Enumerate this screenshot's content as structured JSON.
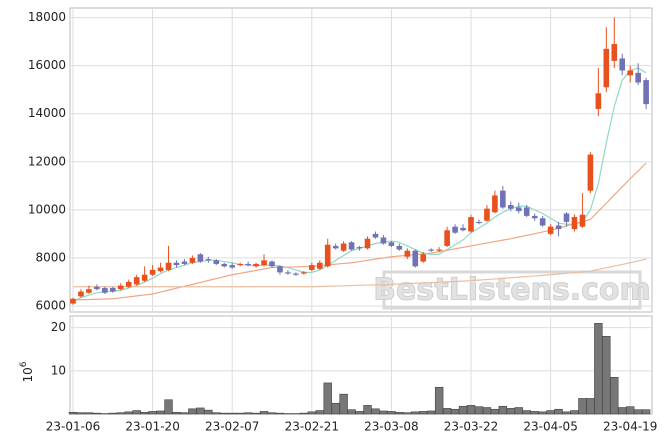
{
  "chart_data": [
    {
      "type": "candlestick",
      "x": [
        "23-01-06",
        "23-01-09",
        "23-01-10",
        "23-01-11",
        "23-01-12",
        "23-01-13",
        "23-01-16",
        "23-01-17",
        "23-01-18",
        "23-01-19",
        "23-01-20",
        "23-01-25",
        "23-01-26",
        "23-01-27",
        "23-01-30",
        "23-01-31",
        "23-02-01",
        "23-02-02",
        "23-02-03",
        "23-02-06",
        "23-02-07",
        "23-02-08",
        "23-02-09",
        "23-02-10",
        "23-02-13",
        "23-02-14",
        "23-02-15",
        "23-02-16",
        "23-02-17",
        "23-02-20",
        "23-02-21",
        "23-02-22",
        "23-02-23",
        "23-02-24",
        "23-02-27",
        "23-02-28",
        "23-03-02",
        "23-03-03",
        "23-03-06",
        "23-03-07",
        "23-03-08",
        "23-03-09",
        "23-03-10",
        "23-03-13",
        "23-03-14",
        "23-03-15",
        "23-03-16",
        "23-03-17",
        "23-03-20",
        "23-03-21",
        "23-03-22",
        "23-03-23",
        "23-03-24",
        "23-03-27",
        "23-03-28",
        "23-03-29",
        "23-03-30",
        "23-03-31",
        "23-04-03",
        "23-04-04",
        "23-04-05",
        "23-04-06",
        "23-04-07",
        "23-04-10",
        "23-04-11",
        "23-04-12",
        "23-04-13",
        "23-04-14",
        "23-04-17",
        "23-04-18",
        "23-04-19",
        "23-04-20",
        "23-04-21"
      ],
      "open": [
        6100,
        6400,
        6550,
        6800,
        6750,
        6750,
        6700,
        6800,
        6900,
        7050,
        7300,
        7450,
        7500,
        7800,
        7850,
        7800,
        8150,
        7950,
        7900,
        7750,
        7700,
        7700,
        7750,
        7650,
        7700,
        7850,
        7650,
        7400,
        7350,
        7350,
        7500,
        7550,
        7650,
        8500,
        8300,
        8650,
        8450,
        8400,
        9000,
        8850,
        8650,
        8500,
        8050,
        8300,
        7850,
        8350,
        8300,
        8500,
        9300,
        9250,
        9100,
        9500,
        9550,
        9900,
        10800,
        10200,
        10100,
        10100,
        9750,
        9650,
        9000,
        9350,
        9850,
        9200,
        9300,
        10800,
        14200,
        15100,
        16200,
        16300,
        15600,
        15700,
        15400
      ],
      "high": [
        6350,
        6700,
        6850,
        6900,
        6800,
        6800,
        6950,
        7100,
        7300,
        7650,
        7700,
        7800,
        8500,
        7900,
        7950,
        8100,
        8200,
        8050,
        7950,
        7800,
        7800,
        7800,
        7850,
        7800,
        8150,
        7900,
        7700,
        7500,
        7400,
        7450,
        7800,
        7900,
        8800,
        8600,
        8700,
        8700,
        8500,
        8900,
        9100,
        8950,
        8700,
        8600,
        8400,
        8350,
        8250,
        8400,
        8450,
        9300,
        9400,
        9400,
        9800,
        9600,
        10200,
        10800,
        11000,
        10350,
        10300,
        10200,
        9850,
        9750,
        9400,
        9500,
        9900,
        9800,
        10700,
        12400,
        15900,
        17600,
        18000,
        16500,
        16000,
        16100,
        15500
      ],
      "low": [
        6050,
        6350,
        6500,
        6650,
        6500,
        6550,
        6650,
        6750,
        6850,
        7000,
        7250,
        7400,
        7450,
        7600,
        7700,
        7750,
        7800,
        7800,
        7700,
        7600,
        7550,
        7650,
        7650,
        7600,
        7650,
        7600,
        7300,
        7300,
        7250,
        7300,
        7450,
        7500,
        7600,
        8350,
        8250,
        8300,
        8300,
        8350,
        8800,
        8550,
        8450,
        8300,
        7950,
        7600,
        7800,
        8250,
        8250,
        8450,
        9000,
        9100,
        9050,
        9400,
        9500,
        9850,
        10050,
        9950,
        9850,
        9700,
        9550,
        9300,
        8950,
        8900,
        9300,
        9100,
        9250,
        10700,
        13900,
        14900,
        15900,
        15600,
        15300,
        15200,
        14200
      ],
      "close": [
        6300,
        6600,
        6700,
        6700,
        6550,
        6600,
        6850,
        7000,
        7200,
        7300,
        7500,
        7600,
        7800,
        7700,
        7750,
        8000,
        7850,
        7900,
        7750,
        7650,
        7600,
        7750,
        7700,
        7750,
        7900,
        7650,
        7400,
        7350,
        7300,
        7400,
        7700,
        7800,
        8550,
        8400,
        8600,
        8350,
        8400,
        8800,
        8850,
        8600,
        8500,
        8350,
        8300,
        7650,
        8150,
        8300,
        8350,
        9150,
        9050,
        9150,
        9700,
        9450,
        10050,
        10600,
        10100,
        10050,
        9950,
        9750,
        9650,
        9350,
        9300,
        9200,
        9500,
        9700,
        9800,
        12300,
        14850,
        16700,
        16900,
        15800,
        15800,
        15300,
        14400
      ],
      "up_color": "#e8501e",
      "down_color": "#6f72b5",
      "lines": [
        {
          "color": "#8fd9c2",
          "values": [
            6200,
            6350,
            6450,
            6550,
            6600,
            6620,
            6650,
            6750,
            6850,
            7000,
            7150,
            7350,
            7500,
            7600,
            7700,
            7800,
            7850,
            7900,
            7900,
            7850,
            7800,
            7720,
            7700,
            7680,
            7700,
            7700,
            7660,
            7600,
            7500,
            7400,
            7400,
            7500,
            7700,
            7900,
            8100,
            8300,
            8400,
            8500,
            8600,
            8650,
            8700,
            8650,
            8500,
            8350,
            8200,
            8150,
            8150,
            8350,
            8550,
            8750,
            9050,
            9250,
            9450,
            9700,
            9900,
            10050,
            10150,
            10150,
            10000,
            9850,
            9650,
            9450,
            9400,
            9400,
            9500,
            10000,
            11100,
            12800,
            14300,
            15400,
            15800,
            15900,
            15700
          ]
        },
        {
          "color": "#f0a585",
          "values": [
            6250,
            6260,
            6270,
            6280,
            6290,
            6300,
            6340,
            6380,
            6420,
            6460,
            6500,
            6580,
            6660,
            6740,
            6820,
            6900,
            6980,
            7060,
            7140,
            7220,
            7300,
            7360,
            7420,
            7480,
            7540,
            7600,
            7610,
            7620,
            7630,
            7640,
            7650,
            7680,
            7710,
            7740,
            7770,
            7800,
            7850,
            7900,
            7950,
            8000,
            8050,
            8080,
            8110,
            8140,
            8170,
            8200,
            8260,
            8320,
            8380,
            8440,
            8500,
            8560,
            8620,
            8680,
            8740,
            8800,
            8870,
            8940,
            9010,
            9080,
            9150,
            9240,
            9330,
            9420,
            9510,
            9600,
            9940,
            10280,
            10620,
            10960,
            11300,
            11620,
            11950
          ]
        },
        {
          "color": "#e9bfa2",
          "values": [
            6800,
            6800,
            6800,
            6800,
            6800,
            6800,
            6800,
            6800,
            6800,
            6800,
            6800,
            6800,
            6800,
            6800,
            6800,
            6800,
            6800,
            6800,
            6800,
            6800,
            6800,
            6800,
            6800,
            6800,
            6800,
            6800,
            6800,
            6800,
            6800,
            6800,
            6800,
            6810,
            6820,
            6830,
            6840,
            6850,
            6860,
            6870,
            6880,
            6890,
            6900,
            6915,
            6930,
            6945,
            6960,
            6975,
            6990,
            7005,
            7020,
            7035,
            7050,
            7075,
            7100,
            7125,
            7150,
            7175,
            7200,
            7225,
            7250,
            7275,
            7300,
            7330,
            7360,
            7390,
            7420,
            7450,
            7520,
            7590,
            7660,
            7730,
            7800,
            7875,
            7950
          ]
        }
      ],
      "ylim": [
        5750,
        18400
      ],
      "yticks": [
        6000,
        8000,
        10000,
        12000,
        14000,
        16000,
        18000
      ],
      "xticks": [
        "23-01-06",
        "23-01-20",
        "23-02-07",
        "23-02-21",
        "23-03-08",
        "23-03-22",
        "23-04-05",
        "23-04-19"
      ],
      "grid": true,
      "watermark": "BestListens.com"
    },
    {
      "type": "bar",
      "values": [
        0.4,
        0.3,
        0.3,
        0.2,
        0.1,
        0.2,
        0.3,
        0.5,
        0.8,
        0.4,
        0.6,
        0.7,
        3.3,
        0.4,
        0.3,
        1.2,
        1.4,
        0.9,
        0.3,
        0.2,
        0.2,
        0.2,
        0.3,
        0.2,
        0.6,
        0.3,
        0.2,
        0.1,
        0.1,
        0.2,
        0.5,
        0.8,
        7.2,
        2.5,
        4.6,
        1.0,
        0.6,
        2.0,
        1.2,
        0.7,
        0.6,
        0.4,
        0.3,
        0.5,
        0.6,
        0.7,
        6.2,
        1.3,
        1.1,
        1.8,
        2.0,
        1.7,
        1.5,
        1.1,
        1.8,
        1.3,
        1.5,
        0.8,
        0.6,
        0.5,
        0.8,
        1.1,
        0.5,
        0.8,
        3.6,
        3.6,
        21,
        18,
        8.5,
        1.5,
        1.7,
        1.0,
        1.0
      ],
      "color": "#777777",
      "ylim": [
        0,
        22.7
      ],
      "yticks": [
        10,
        20
      ],
      "grid": true,
      "scale_base": "10",
      "scale_exponent": "6"
    }
  ]
}
